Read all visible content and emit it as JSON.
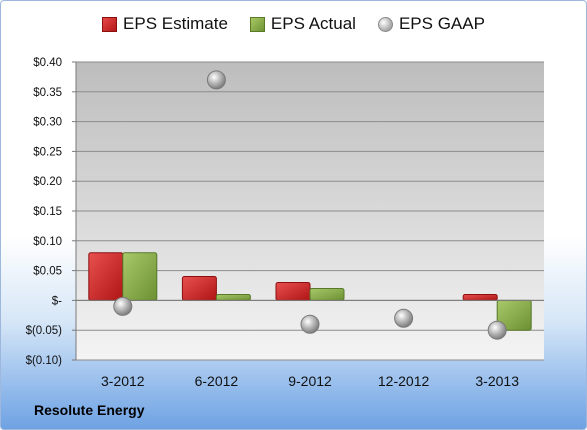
{
  "chart_data": {
    "type": "bar",
    "categories": [
      "3-2012",
      "6-2012",
      "9-2012",
      "12-2012",
      "3-2013"
    ],
    "series": [
      {
        "name": "EPS Estimate",
        "type": "bar",
        "color": "#c92020",
        "values": [
          0.08,
          0.04,
          0.03,
          null,
          0.01
        ]
      },
      {
        "name": "EPS Actual",
        "type": "bar",
        "color": "#86a843",
        "values": [
          0.08,
          0.01,
          0.02,
          null,
          -0.05
        ]
      },
      {
        "name": "EPS GAAP",
        "type": "scatter",
        "color": "#a6a6a6",
        "values": [
          -0.01,
          0.37,
          -0.04,
          -0.03,
          -0.05
        ]
      }
    ],
    "ylim": [
      -0.1,
      0.4
    ],
    "y_ticks": [
      {
        "value": 0.4,
        "label": "$0.40"
      },
      {
        "value": 0.35,
        "label": "$0.35"
      },
      {
        "value": 0.3,
        "label": "$0.30"
      },
      {
        "value": 0.25,
        "label": "$0.25"
      },
      {
        "value": 0.2,
        "label": "$0.20"
      },
      {
        "value": 0.15,
        "label": "$0.15"
      },
      {
        "value": 0.1,
        "label": "$0.10"
      },
      {
        "value": 0.05,
        "label": "$0.05"
      },
      {
        "value": 0.0,
        "label": "$-"
      },
      {
        "value": -0.05,
        "label": "$(0.05)"
      },
      {
        "value": -0.1,
        "label": "$(0.10)"
      }
    ],
    "grid": true,
    "legend_position": "top-center"
  },
  "legend": {
    "estimate_label": "EPS Estimate",
    "actual_label": "EPS Actual",
    "gaap_label": "EPS GAAP"
  },
  "company": "Resolute Energy"
}
